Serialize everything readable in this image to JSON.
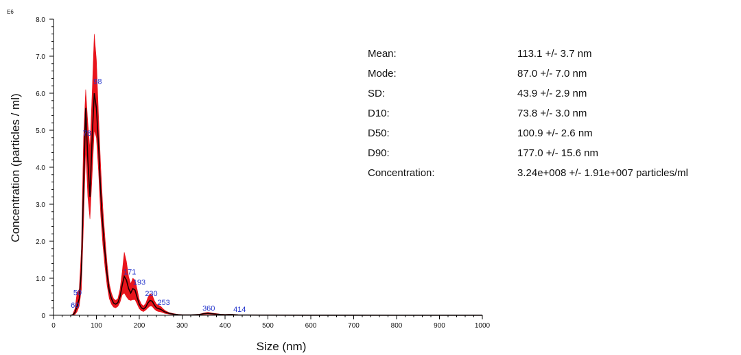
{
  "chart_data": {
    "type": "line",
    "title": "",
    "xlabel": "Size (nm)",
    "ylabel": "Concentration (particles / ml)",
    "y_exponent_label": "E6",
    "xlim": [
      0,
      1000
    ],
    "ylim": [
      0,
      8.0
    ],
    "x_ticks": [
      0,
      100,
      200,
      300,
      400,
      500,
      600,
      700,
      800,
      900,
      1000
    ],
    "y_ticks": [
      {
        "value": 0,
        "label": "0"
      },
      {
        "value": 1,
        "label": "1.0"
      },
      {
        "value": 2,
        "label": "2.0"
      },
      {
        "value": 3,
        "label": "3.0"
      },
      {
        "value": 4,
        "label": "4.0"
      },
      {
        "value": 5,
        "label": "5.0"
      },
      {
        "value": 6,
        "label": "6.0"
      },
      {
        "value": 7,
        "label": "7.0"
      },
      {
        "value": 8,
        "label": "8.0"
      }
    ],
    "grid": false,
    "legend": "none",
    "mean_color": "#1a0000",
    "error_color": "#e8141c",
    "x": [
      40,
      45,
      50,
      55,
      60,
      65,
      70,
      75,
      80,
      85,
      90,
      95,
      100,
      105,
      110,
      115,
      120,
      125,
      130,
      135,
      140,
      145,
      150,
      155,
      160,
      165,
      170,
      175,
      180,
      185,
      190,
      195,
      200,
      205,
      210,
      215,
      220,
      225,
      230,
      235,
      240,
      245,
      250,
      255,
      260,
      265,
      270,
      280,
      290,
      300,
      320,
      340,
      350,
      360,
      370,
      380,
      390,
      400,
      414,
      430,
      450,
      500,
      600,
      700,
      800,
      900,
      1000
    ],
    "series": [
      {
        "values": [
          0,
          0.01,
          0.08,
          0.25,
          0.45,
          1.2,
          3.5,
          5.6,
          4.2,
          3.2,
          4.8,
          6.0,
          5.6,
          4.6,
          3.3,
          2.4,
          1.7,
          1.1,
          0.65,
          0.45,
          0.33,
          0.3,
          0.34,
          0.5,
          0.8,
          1.05,
          0.95,
          0.72,
          0.6,
          0.72,
          0.68,
          0.48,
          0.3,
          0.2,
          0.17,
          0.22,
          0.33,
          0.4,
          0.38,
          0.28,
          0.2,
          0.18,
          0.16,
          0.12,
          0.09,
          0.07,
          0.05,
          0.03,
          0.015,
          0.01,
          0.008,
          0.02,
          0.04,
          0.05,
          0.04,
          0.03,
          0.02,
          0.015,
          0.02,
          0.01,
          0.006,
          0.004,
          0.002,
          0.001,
          0,
          0,
          0
        ],
        "lower": [
          0,
          0,
          0.02,
          0.1,
          0.25,
          0.7,
          2.5,
          4.5,
          3.2,
          2.6,
          3.8,
          5.0,
          4.8,
          3.9,
          2.7,
          1.9,
          1.3,
          0.8,
          0.45,
          0.3,
          0.22,
          0.2,
          0.24,
          0.35,
          0.55,
          0.6,
          0.5,
          0.42,
          0.4,
          0.42,
          0.42,
          0.3,
          0.18,
          0.12,
          0.1,
          0.14,
          0.2,
          0.25,
          0.24,
          0.17,
          0.12,
          0.1,
          0.09,
          0.07,
          0.05,
          0.04,
          0.03,
          0.015,
          0.008,
          0.005,
          0.004,
          0.01,
          0.02,
          0.03,
          0.02,
          0.015,
          0.01,
          0.008,
          0.01,
          0.005,
          0.003,
          0.002,
          0.001,
          0,
          0,
          0,
          0
        ],
        "upper": [
          0,
          0.03,
          0.18,
          0.62,
          0.7,
          1.8,
          4.8,
          6.1,
          5.2,
          4.5,
          6.0,
          7.6,
          6.9,
          5.4,
          4.0,
          2.9,
          2.1,
          1.4,
          0.85,
          0.6,
          0.45,
          0.4,
          0.45,
          0.7,
          1.15,
          1.7,
          1.45,
          1.05,
          0.85,
          1.0,
          0.95,
          0.7,
          0.42,
          0.3,
          0.25,
          0.32,
          0.48,
          0.58,
          0.55,
          0.4,
          0.3,
          0.27,
          0.24,
          0.18,
          0.13,
          0.1,
          0.07,
          0.045,
          0.025,
          0.015,
          0.012,
          0.03,
          0.06,
          0.08,
          0.06,
          0.045,
          0.03,
          0.022,
          0.03,
          0.015,
          0.01,
          0.006,
          0.003,
          0.001,
          0,
          0,
          0
        ]
      }
    ],
    "annotations": [
      {
        "text": "50",
        "x": 56,
        "y": 0.55
      },
      {
        "text": "60",
        "x": 50,
        "y": 0.2
      },
      {
        "text": "78",
        "x": 78,
        "y": 4.85
      },
      {
        "text": "98",
        "x": 103,
        "y": 6.25
      },
      {
        "text": "171",
        "x": 178,
        "y": 1.1
      },
      {
        "text": "193",
        "x": 200,
        "y": 0.82
      },
      {
        "text": "230",
        "x": 228,
        "y": 0.52
      },
      {
        "text": "253",
        "x": 257,
        "y": 0.28
      },
      {
        "text": "360",
        "x": 362,
        "y": 0.12
      },
      {
        "text": "414",
        "x": 434,
        "y": 0.09
      }
    ]
  },
  "stats": [
    {
      "name": "Mean:",
      "value": "113.1 +/- 3.7 nm"
    },
    {
      "name": "Mode:",
      "value": "87.0 +/- 7.0 nm"
    },
    {
      "name": "SD:",
      "value": "43.9 +/- 2.9 nm"
    },
    {
      "name": "D10:",
      "value": "73.8 +/- 3.0 nm"
    },
    {
      "name": "D50:",
      "value": "100.9 +/- 2.6 nm"
    },
    {
      "name": "D90:",
      "value": "177.0 +/- 15.6 nm"
    },
    {
      "name": "Concentration:",
      "value": "3.24e+008 +/- 1.91e+007 particles/ml"
    }
  ]
}
